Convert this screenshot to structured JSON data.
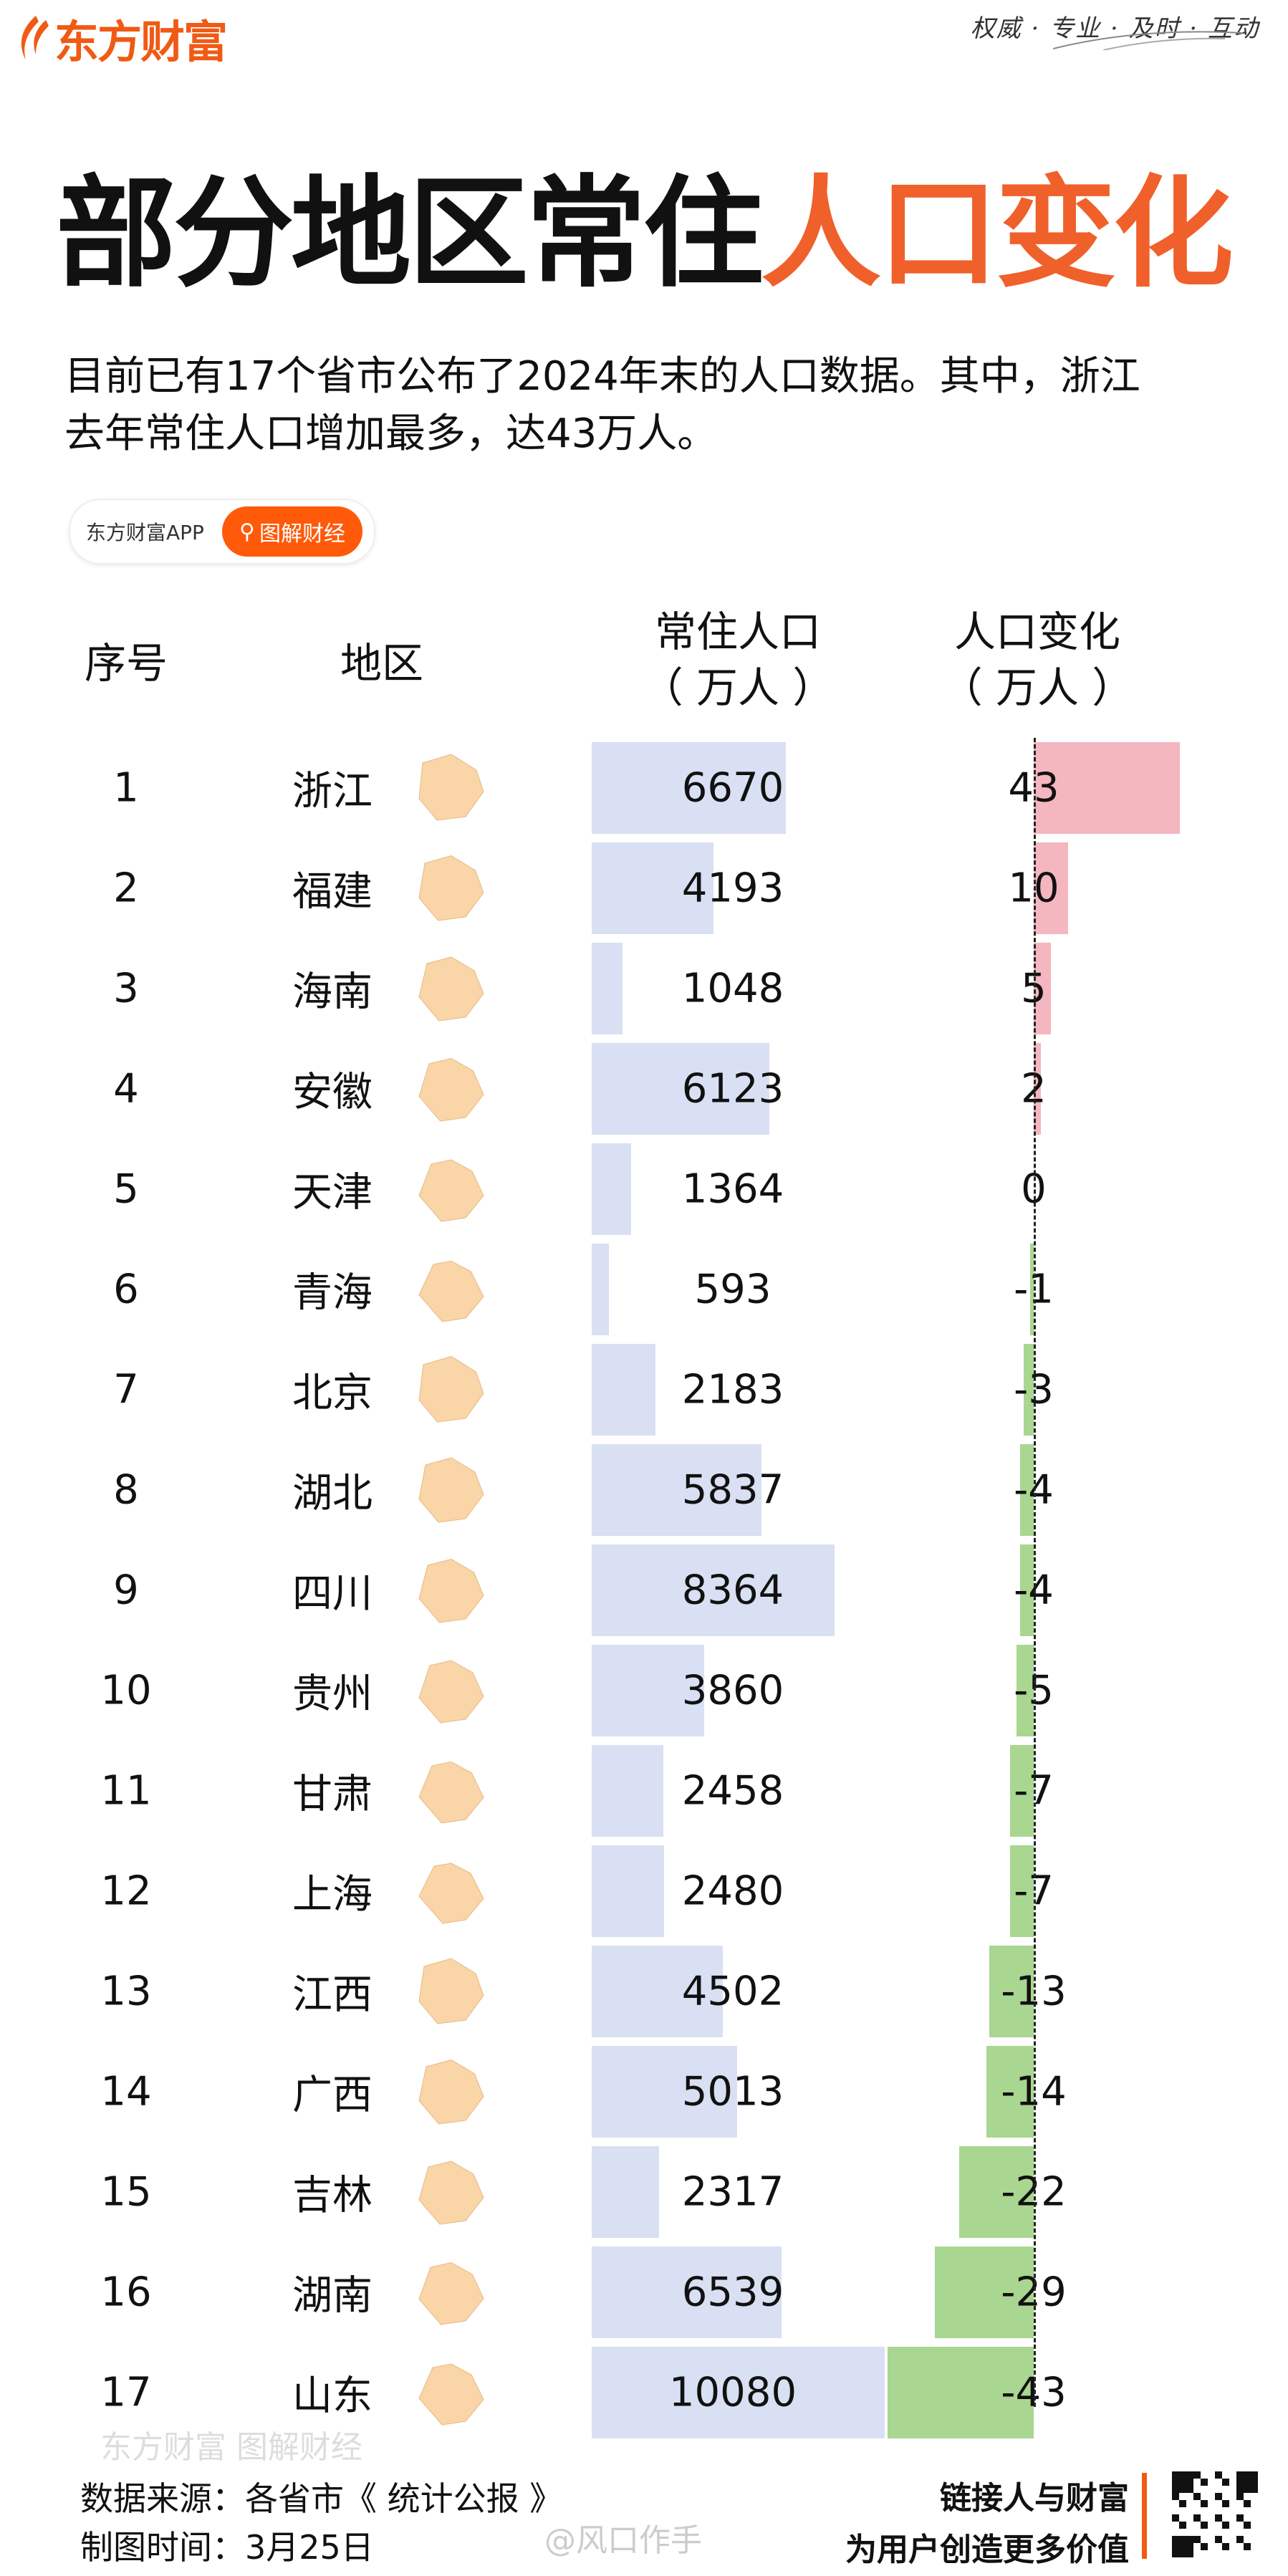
{
  "header": {
    "logo_text": "东方财富",
    "motto": "权威 · 专业 · 及时 · 互动",
    "title_black": "部分地区常住",
    "title_orange": "人口变化",
    "subtitle_lines": [
      "目前已有17个省市公布了2024年末的人口数据。其中，浙江",
      "去年常住人口增加最多，达43万人。"
    ],
    "pill_left": "东方财富APP",
    "pill_right": "图解财经"
  },
  "colors": {
    "accent": "#f0602a",
    "population_bar": "#d9e0f3",
    "increase_bar": "#f4b6bf",
    "decrease_bar": "#a9d690",
    "map_fill": "#f9d5a7"
  },
  "chart_data": {
    "type": "table",
    "columns": [
      "序号",
      "地区",
      "常住人口（万人）",
      "人口变化（万人）"
    ],
    "header_lines": {
      "pop": [
        "常住人口",
        "（ 万人 ）"
      ],
      "change": [
        "人口变化",
        "（ 万人 ）"
      ]
    },
    "rows": [
      {
        "rank": "1",
        "region": "浙江",
        "population": 6670,
        "change": 43
      },
      {
        "rank": "2",
        "region": "福建",
        "population": 4193,
        "change": 10
      },
      {
        "rank": "3",
        "region": "海南",
        "population": 1048,
        "change": 5
      },
      {
        "rank": "4",
        "region": "安徽",
        "population": 6123,
        "change": 2
      },
      {
        "rank": "5",
        "region": "天津",
        "population": 1364,
        "change": 0
      },
      {
        "rank": "6",
        "region": "青海",
        "population": 593,
        "change": -1
      },
      {
        "rank": "7",
        "region": "北京",
        "population": 2183,
        "change": -3
      },
      {
        "rank": "8",
        "region": "湖北",
        "population": 5837,
        "change": -4
      },
      {
        "rank": "9",
        "region": "四川",
        "population": 8364,
        "change": -4
      },
      {
        "rank": "10",
        "region": "贵州",
        "population": 3860,
        "change": -5
      },
      {
        "rank": "11",
        "region": "甘肃",
        "population": 2458,
        "change": -7
      },
      {
        "rank": "12",
        "region": "上海",
        "population": 2480,
        "change": -7
      },
      {
        "rank": "13",
        "region": "江西",
        "population": 4502,
        "change": -13
      },
      {
        "rank": "14",
        "region": "广西",
        "population": 5013,
        "change": -14
      },
      {
        "rank": "15",
        "region": "吉林",
        "population": 2317,
        "change": -22
      },
      {
        "rank": "16",
        "region": "湖南",
        "population": 6539,
        "change": -29
      },
      {
        "rank": "17",
        "region": "山东",
        "population": 10080,
        "change": -43
      }
    ]
  },
  "footer": {
    "watermark": "东方财富 图解财经",
    "source": "数据来源：各省市《 统计公报 》",
    "date": "制图时间：3月25日",
    "weibo": "@风口作手",
    "slogan_1": "链接人与财富",
    "slogan_2": "为用户创造更多价值"
  }
}
